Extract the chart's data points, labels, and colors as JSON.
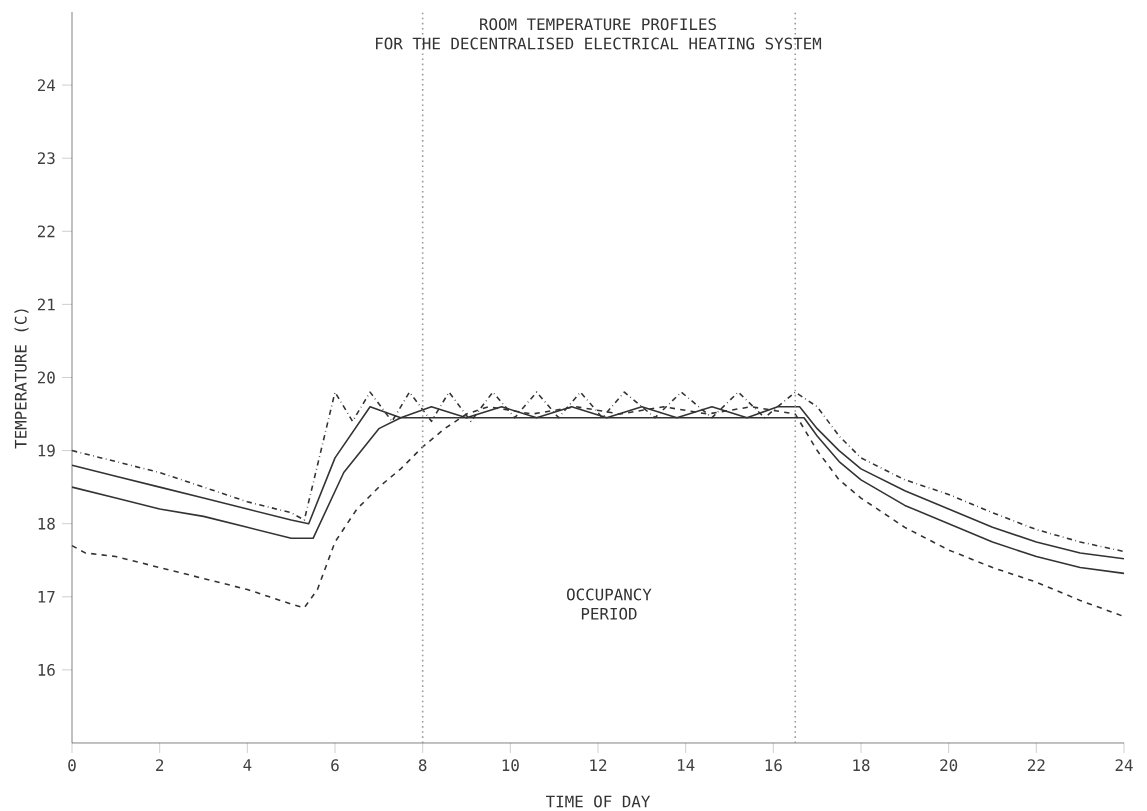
{
  "chart_data": {
    "type": "line",
    "title": "ROOM TEMPERATURE PROFILES",
    "subtitle": "FOR THE DECENTRALISED ELECTRICAL HEATING SYSTEM",
    "xlabel": "TIME OF DAY",
    "ylabel": "TEMPERATURE (C)",
    "xlim": [
      0,
      24
    ],
    "ylim": [
      15,
      25
    ],
    "xticks": [
      0,
      2,
      4,
      6,
      8,
      10,
      12,
      14,
      16,
      18,
      20,
      22,
      24
    ],
    "yticks": [
      16,
      17,
      18,
      19,
      20,
      21,
      22,
      23,
      24
    ],
    "grid": false,
    "marker": "none",
    "ref_lines": [
      {
        "axis": "x",
        "value": 8,
        "color": "#999999",
        "line_style": "dotted"
      },
      {
        "axis": "x",
        "value": 16.5,
        "color": "#999999",
        "line_style": "dotted"
      }
    ],
    "annotations": [
      "OCCUPANCY PERIOD"
    ],
    "series": [
      {
        "color": "#333333",
        "line_style": "dashdot",
        "x": [
          0,
          1,
          2,
          3,
          4,
          5,
          5.3,
          6.0,
          6.4,
          6.8,
          7.3,
          7.7,
          8.2,
          8.6,
          9.1,
          9.6,
          10.1,
          10.6,
          11.1,
          11.6,
          12.1,
          12.6,
          13.3,
          13.9,
          14.6,
          15.2,
          15.8,
          16.5,
          17,
          17.5,
          18,
          19,
          20,
          21,
          22,
          23,
          24
        ],
        "values": [
          19.0,
          18.85,
          18.7,
          18.5,
          18.3,
          18.15,
          18.05,
          19.8,
          19.4,
          19.8,
          19.4,
          19.8,
          19.4,
          19.8,
          19.4,
          19.8,
          19.45,
          19.8,
          19.45,
          19.8,
          19.45,
          19.8,
          19.45,
          19.8,
          19.45,
          19.8,
          19.45,
          19.8,
          19.6,
          19.2,
          18.9,
          18.6,
          18.4,
          18.15,
          17.92,
          17.75,
          17.62
        ]
      },
      {
        "color": "#333333",
        "line_style": "solid",
        "x": [
          0,
          1,
          2,
          3,
          4,
          5,
          5.4,
          6.0,
          6.8,
          7.5,
          8.2,
          9,
          9.8,
          10.6,
          11.4,
          12.2,
          13,
          13.8,
          14.6,
          15.4,
          16.1,
          16.6,
          17,
          17.5,
          18,
          19,
          20,
          21,
          22,
          23,
          24
        ],
        "values": [
          18.8,
          18.65,
          18.5,
          18.35,
          18.2,
          18.05,
          18.0,
          18.9,
          19.6,
          19.45,
          19.6,
          19.45,
          19.6,
          19.45,
          19.6,
          19.45,
          19.6,
          19.45,
          19.6,
          19.45,
          19.6,
          19.6,
          19.3,
          19.0,
          18.75,
          18.45,
          18.2,
          17.95,
          17.75,
          17.6,
          17.52
        ]
      },
      {
        "color": "#333333",
        "line_style": "solid",
        "x": [
          0,
          1,
          2,
          3,
          4,
          5,
          5.5,
          6.2,
          7.0,
          7.5,
          16.7,
          17,
          17.5,
          18,
          19,
          20,
          21,
          22,
          23,
          24
        ],
        "values": [
          18.5,
          18.35,
          18.2,
          18.1,
          17.95,
          17.8,
          17.8,
          18.7,
          19.3,
          19.45,
          19.45,
          19.2,
          18.85,
          18.6,
          18.25,
          18.0,
          17.75,
          17.55,
          17.4,
          17.32
        ]
      },
      {
        "color": "#333333",
        "line_style": "dashed",
        "x": [
          0,
          0.3,
          1,
          2,
          3,
          4,
          5,
          5.3,
          5.6,
          6,
          6.5,
          7,
          7.5,
          8,
          8.5,
          9,
          9.5,
          10.5,
          11.5,
          12.5,
          13.5,
          14.5,
          15.5,
          16.5,
          17,
          17.5,
          18,
          19,
          20,
          21,
          22,
          23,
          24
        ],
        "values": [
          17.7,
          17.6,
          17.55,
          17.4,
          17.25,
          17.1,
          16.9,
          16.85,
          17.1,
          17.75,
          18.2,
          18.5,
          18.75,
          19.05,
          19.3,
          19.5,
          19.6,
          19.5,
          19.6,
          19.5,
          19.6,
          19.5,
          19.6,
          19.5,
          19.0,
          18.6,
          18.35,
          17.95,
          17.64,
          17.4,
          17.2,
          16.95,
          16.73
        ]
      }
    ]
  }
}
